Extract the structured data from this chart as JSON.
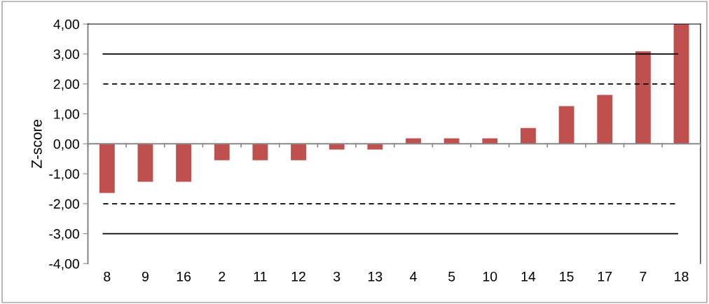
{
  "chart_data": {
    "type": "bar",
    "ylabel": "Z-score",
    "categories": [
      "8",
      "9",
      "16",
      "2",
      "11",
      "12",
      "3",
      "13",
      "4",
      "5",
      "10",
      "14",
      "15",
      "17",
      "7",
      "18"
    ],
    "values": [
      -1.64,
      -1.27,
      -1.27,
      -0.55,
      -0.55,
      -0.55,
      -0.19,
      -0.19,
      0.18,
      0.18,
      0.18,
      0.53,
      1.26,
      1.63,
      3.09,
      4.0
    ],
    "color": "#c0504d",
    "ylim": [
      -4,
      4
    ],
    "yticks": [
      {
        "value": -4,
        "label": "-4,00"
      },
      {
        "value": -3,
        "label": "-3,00"
      },
      {
        "value": -2,
        "label": "-2,00"
      },
      {
        "value": -1,
        "label": "-1,00"
      },
      {
        "value": 0,
        "label": "0,00"
      },
      {
        "value": 1,
        "label": "1,00"
      },
      {
        "value": 2,
        "label": "2,00"
      },
      {
        "value": 3,
        "label": "3,00"
      },
      {
        "value": 4,
        "label": "4,00"
      }
    ],
    "ref_lines": [
      {
        "axis": "y",
        "value": 3,
        "color": "#000000",
        "line_style": "solid"
      },
      {
        "axis": "y",
        "value": 2,
        "color": "#000000",
        "line_style": "dashed"
      },
      {
        "axis": "y",
        "value": -2,
        "color": "#000000",
        "line_style": "dashed"
      },
      {
        "axis": "y",
        "value": -3,
        "color": "#000000",
        "line_style": "solid"
      }
    ],
    "grid": false,
    "legend": false
  }
}
